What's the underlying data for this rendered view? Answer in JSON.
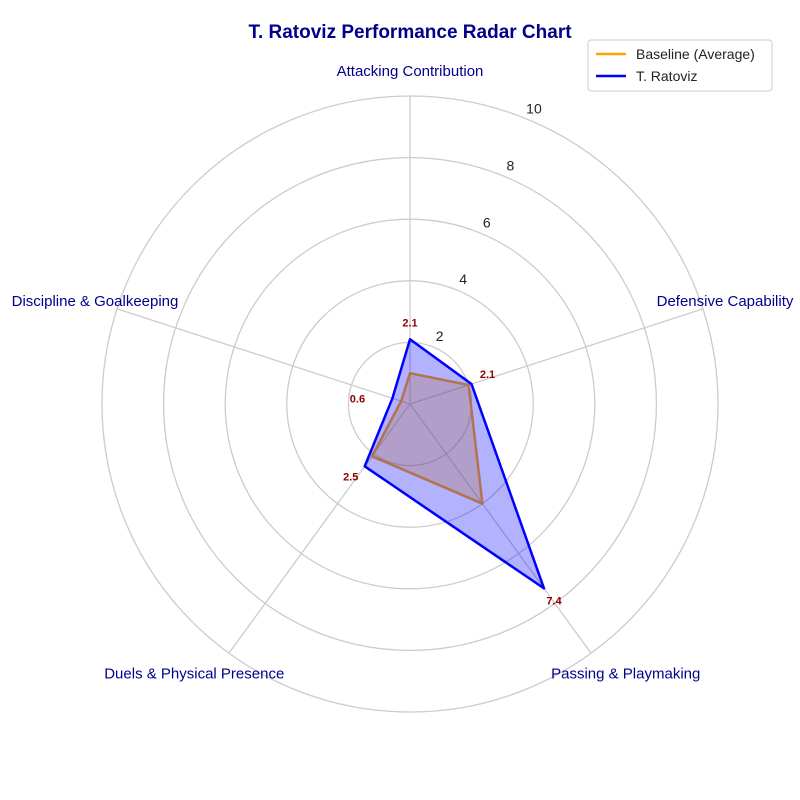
{
  "chart_data": {
    "type": "radar",
    "title": "T. Ratoviz Performance Radar Chart",
    "categories": [
      "Attacking Contribution",
      "Defensive Capability",
      "Passing & Playmaking",
      "Duels & Physical Presence",
      "Discipline & Goalkeeping"
    ],
    "rlim": [
      0,
      10
    ],
    "ticks": [
      "2",
      "4",
      "6",
      "8",
      "10"
    ],
    "tick_values": [
      2,
      4,
      6,
      8,
      10
    ],
    "grid": true,
    "legend_position": "top-right",
    "series": [
      {
        "name": "Baseline (Average)",
        "values": [
          1.0,
          2.0,
          4.0,
          2.1,
          0.3
        ],
        "color": "#ffa500",
        "fill": "#ffa500",
        "show_labels": false
      },
      {
        "name": "T. Ratoviz",
        "values": [
          2.1,
          2.1,
          7.4,
          2.5,
          0.6
        ],
        "labels": [
          "2.1",
          "2.1",
          "7.4",
          "2.5",
          "0.6"
        ],
        "color": "#0000ff",
        "fill": "#0000ff",
        "show_labels": true
      }
    ]
  }
}
